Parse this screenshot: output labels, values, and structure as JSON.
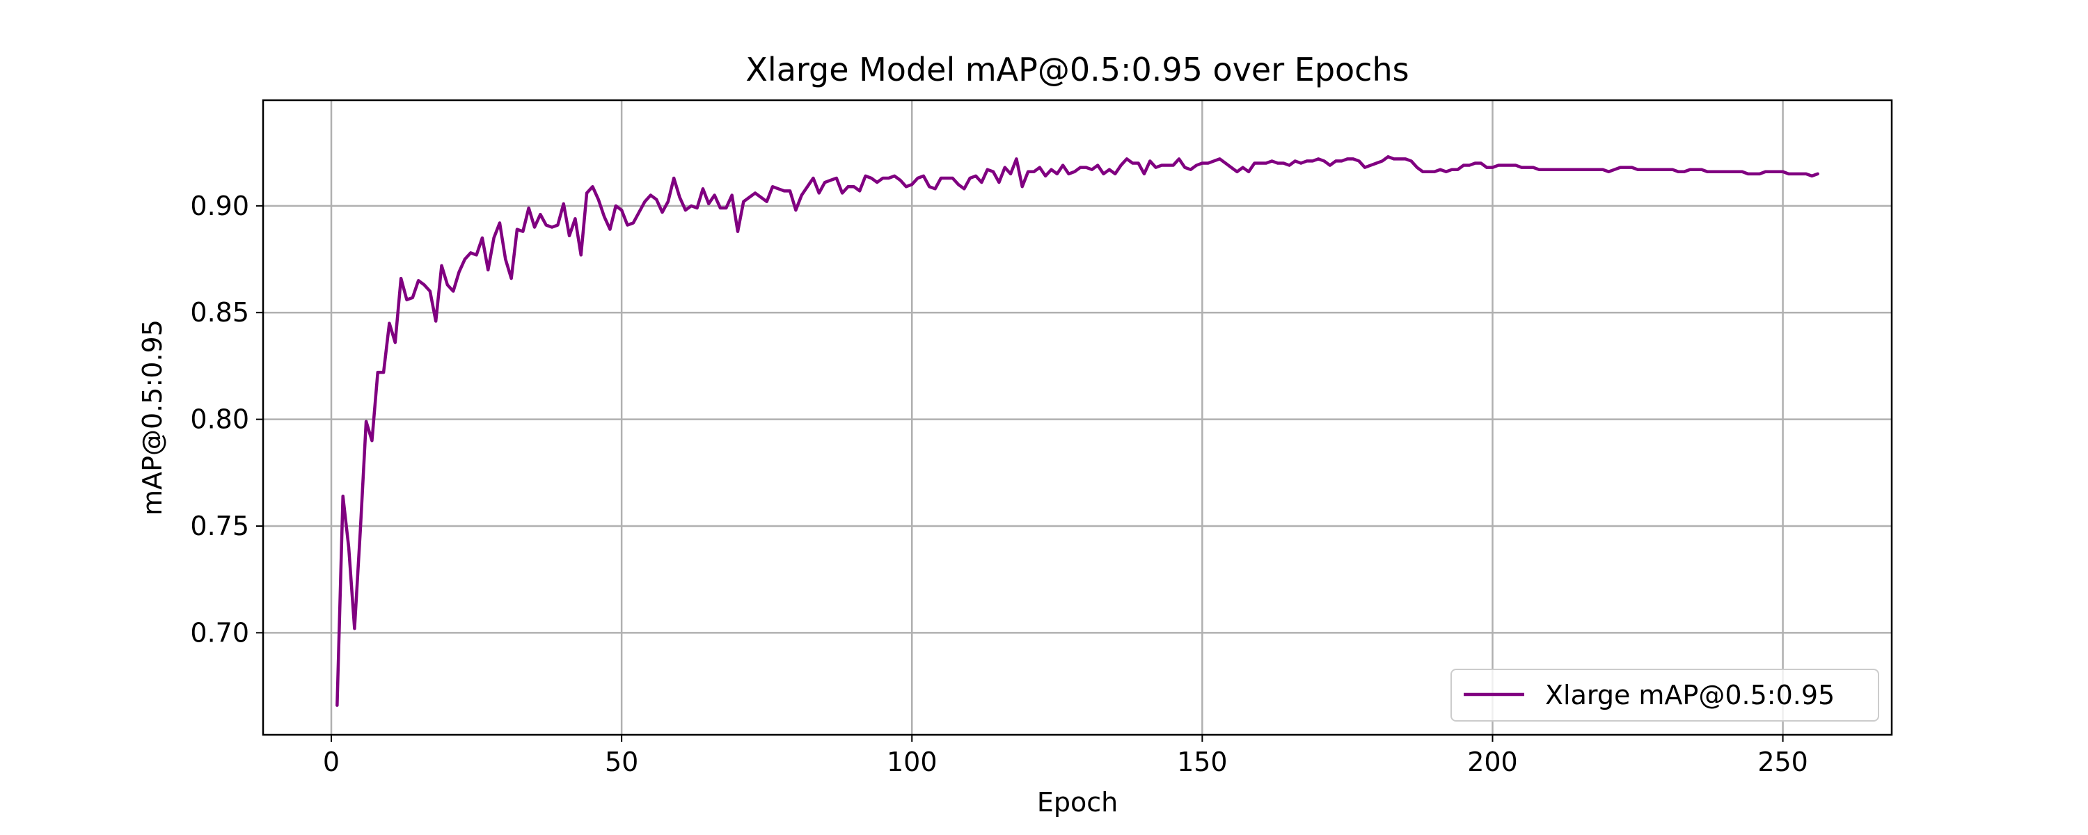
{
  "chart_data": {
    "type": "line",
    "title": "Xlarge Model mAP@0.5:0.95 over Epochs",
    "xlabel": "Epoch",
    "ylabel": "mAP@0.5:0.95",
    "xlim": [
      -11.75,
      268.75
    ],
    "ylim": [
      0.6522,
      0.9495
    ],
    "x_ticks": [
      0,
      50,
      100,
      150,
      200,
      250
    ],
    "x_tick_labels": [
      "0",
      "50",
      "100",
      "150",
      "200",
      "250"
    ],
    "y_ticks": [
      0.7,
      0.75,
      0.8,
      0.85,
      0.9
    ],
    "y_tick_labels": [
      "0.70",
      "0.75",
      "0.80",
      "0.85",
      "0.90"
    ],
    "grid": true,
    "legend": {
      "placement": "lower-right",
      "entries": [
        "Xlarge mAP@0.5:0.95"
      ]
    },
    "series": [
      {
        "name": "Xlarge mAP@0.5:0.95",
        "color": "#800080",
        "x_start": 1,
        "x_step": 1,
        "values": [
          0.666,
          0.764,
          0.74,
          0.702,
          0.748,
          0.799,
          0.79,
          0.822,
          0.822,
          0.845,
          0.836,
          0.866,
          0.856,
          0.857,
          0.865,
          0.863,
          0.86,
          0.846,
          0.872,
          0.863,
          0.86,
          0.869,
          0.875,
          0.878,
          0.877,
          0.885,
          0.87,
          0.885,
          0.892,
          0.875,
          0.866,
          0.889,
          0.888,
          0.899,
          0.89,
          0.896,
          0.891,
          0.89,
          0.891,
          0.901,
          0.886,
          0.894,
          0.877,
          0.906,
          0.909,
          0.903,
          0.895,
          0.889,
          0.9,
          0.898,
          0.891,
          0.892,
          0.897,
          0.902,
          0.905,
          0.903,
          0.897,
          0.902,
          0.913,
          0.904,
          0.898,
          0.9,
          0.899,
          0.908,
          0.901,
          0.905,
          0.899,
          0.899,
          0.905,
          0.888,
          0.902,
          0.904,
          0.906,
          0.904,
          0.902,
          0.909,
          0.908,
          0.907,
          0.907,
          0.898,
          0.905,
          0.909,
          0.913,
          0.906,
          0.911,
          0.912,
          0.913,
          0.906,
          0.909,
          0.909,
          0.907,
          0.914,
          0.913,
          0.911,
          0.913,
          0.913,
          0.914,
          0.912,
          0.909,
          0.91,
          0.913,
          0.914,
          0.909,
          0.908,
          0.913,
          0.913,
          0.913,
          0.91,
          0.908,
          0.913,
          0.914,
          0.911,
          0.917,
          0.916,
          0.911,
          0.918,
          0.915,
          0.922,
          0.909,
          0.916,
          0.916,
          0.918,
          0.914,
          0.917,
          0.915,
          0.919,
          0.915,
          0.916,
          0.918,
          0.918,
          0.917,
          0.919,
          0.915,
          0.917,
          0.915,
          0.919,
          0.922,
          0.92,
          0.92,
          0.915,
          0.921,
          0.918,
          0.919,
          0.919,
          0.919,
          0.922,
          0.918,
          0.917,
          0.919,
          0.92,
          0.92,
          0.921,
          0.922,
          0.92,
          0.918,
          0.916,
          0.918,
          0.916,
          0.92,
          0.92,
          0.92,
          0.921,
          0.92,
          0.92,
          0.919,
          0.921,
          0.92,
          0.921,
          0.921,
          0.922,
          0.921,
          0.919,
          0.921,
          0.921,
          0.922,
          0.922,
          0.921,
          0.918,
          0.919,
          0.92,
          0.921,
          0.923,
          0.922,
          0.922,
          0.922,
          0.921,
          0.918,
          0.916,
          0.916,
          0.916,
          0.917,
          0.916,
          0.917,
          0.917,
          0.919,
          0.919,
          0.92,
          0.92,
          0.918,
          0.918,
          0.919,
          0.919,
          0.919,
          0.919,
          0.918,
          0.918,
          0.918,
          0.917,
          0.917,
          0.917,
          0.917,
          0.917,
          0.917,
          0.917,
          0.917,
          0.917,
          0.917,
          0.917,
          0.917,
          0.916,
          0.917,
          0.918,
          0.918,
          0.918,
          0.917,
          0.917,
          0.917,
          0.917,
          0.917,
          0.917,
          0.917,
          0.916,
          0.916,
          0.917,
          0.917,
          0.917,
          0.916,
          0.916,
          0.916,
          0.916,
          0.916,
          0.916,
          0.916,
          0.915,
          0.915,
          0.915,
          0.916,
          0.916,
          0.916,
          0.916,
          0.915,
          0.915,
          0.915,
          0.915,
          0.914,
          0.915
        ]
      }
    ]
  }
}
